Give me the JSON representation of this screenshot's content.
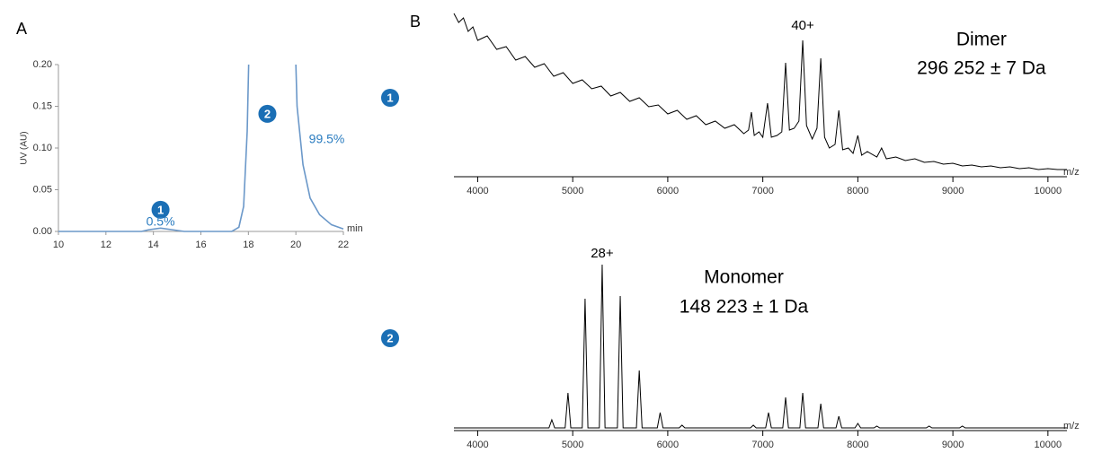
{
  "panels": [
    "A",
    "B"
  ],
  "markers": [
    "1",
    "2"
  ],
  "chart_data": [
    {
      "type": "line",
      "xlabel": "min",
      "ylabel": "UV (AU)",
      "xlim": [
        10,
        22
      ],
      "xticks": [
        10,
        12,
        14,
        16,
        18,
        20,
        22
      ],
      "ylim": [
        0,
        0.2
      ],
      "yticks": [
        {
          "value": 0,
          "label": "0.00"
        },
        {
          "value": 0.05,
          "label": "0.05"
        },
        {
          "value": 0.1,
          "label": "0.10"
        },
        {
          "value": 0.15,
          "label": "0.15"
        },
        {
          "value": 0.2,
          "label": "0.20"
        }
      ],
      "series": [
        {
          "color": "#6b98c9",
          "x": [
            10,
            13.5,
            13.8,
            14.3,
            14.8,
            15.3,
            17.3,
            17.6,
            17.8,
            17.95,
            18.05,
            19.95,
            20.05,
            20.3,
            20.6,
            21,
            21.5,
            22
          ],
          "values": [
            0,
            0,
            0.002,
            0.004,
            0.002,
            0,
            0,
            0.005,
            0.03,
            0.12,
            0.25,
            0.25,
            0.15,
            0.08,
            0.04,
            0.02,
            0.008,
            0.003
          ]
        }
      ],
      "annotations": [
        {
          "text": "1",
          "x": 14.3,
          "y": 0.026,
          "badge": true
        },
        {
          "text": "0.5%",
          "x": 14.3,
          "y": 0.011
        },
        {
          "text": "2",
          "x": 18.8,
          "y": 0.141,
          "badge": true
        },
        {
          "text": "99.5%",
          "x": 21.3,
          "y": 0.11
        }
      ]
    },
    {
      "type": "spectrum",
      "xlabel": "m/z",
      "color": "#000000",
      "xlim": [
        3750,
        10200
      ],
      "xticks": [
        4000,
        5000,
        6000,
        7000,
        8000,
        9000,
        10000
      ],
      "x": [
        3750,
        3800,
        3850,
        3900,
        3950,
        4000,
        4100,
        4200,
        4300,
        4400,
        4500,
        4600,
        4700,
        4800,
        4900,
        5000,
        5100,
        5200,
        5300,
        5400,
        5500,
        5600,
        5700,
        5800,
        5900,
        6000,
        6100,
        6200,
        6300,
        6400,
        6500,
        6600,
        6700,
        6800,
        6850,
        6880,
        6910,
        6960,
        7000,
        7050,
        7090,
        7150,
        7200,
        7240,
        7280,
        7330,
        7380,
        7420,
        7460,
        7520,
        7570,
        7610,
        7650,
        7700,
        7760,
        7800,
        7840,
        7900,
        7950,
        8000,
        8040,
        8100,
        8200,
        8250,
        8300,
        8400,
        8500,
        8600,
        8700,
        8800,
        8900,
        9000,
        9100,
        9200,
        9300,
        9400,
        9500,
        9600,
        9700,
        9800,
        9900,
        10000,
        10100,
        10200
      ],
      "values": [
        180,
        170,
        175,
        160,
        165,
        150,
        155,
        140,
        143,
        128,
        132,
        120,
        124,
        110,
        114,
        102,
        106,
        96,
        99,
        88,
        92,
        82,
        86,
        76,
        78,
        68,
        72,
        62,
        66,
        56,
        60,
        52,
        56,
        46,
        50,
        70,
        44,
        48,
        42,
        80,
        42,
        44,
        48,
        125,
        50,
        52,
        60,
        150,
        55,
        40,
        52,
        130,
        42,
        30,
        34,
        72,
        28,
        30,
        24,
        44,
        22,
        26,
        20,
        30,
        18,
        20,
        16,
        18,
        14,
        15,
        12,
        13,
        10,
        11,
        9,
        10,
        8,
        9,
        7,
        8,
        6,
        7,
        6,
        6
      ],
      "annotations": [
        {
          "text": "40+",
          "x": 7420,
          "y": 166
        },
        {
          "text": "Dimer",
          "x": 9300,
          "y": 150,
          "big": true
        },
        {
          "text": "296 252 ± 7 Da",
          "x": 9300,
          "y": 118,
          "big": true
        }
      ]
    },
    {
      "type": "spectrum",
      "xlabel": "m/z",
      "color": "#000000",
      "xlim": [
        3750,
        10200
      ],
      "xticks": [
        4000,
        5000,
        6000,
        7000,
        8000,
        9000,
        10000
      ],
      "x": [
        3750,
        4700,
        4750,
        4780,
        4810,
        4920,
        4950,
        4980,
        5100,
        5130,
        5160,
        5280,
        5310,
        5340,
        5470,
        5500,
        5530,
        5670,
        5700,
        5730,
        5890,
        5920,
        5950,
        6120,
        6150,
        6180,
        6870,
        6900,
        6930,
        7030,
        7060,
        7090,
        7210,
        7240,
        7270,
        7390,
        7420,
        7450,
        7580,
        7610,
        7640,
        7770,
        7800,
        7830,
        7970,
        8000,
        8030,
        8170,
        8200,
        8230,
        8720,
        8750,
        8780,
        9070,
        9100,
        9130,
        10200
      ],
      "values": [
        1,
        1,
        1,
        10,
        1,
        1,
        40,
        1,
        1,
        145,
        1,
        1,
        183,
        1,
        1,
        148,
        1,
        1,
        65,
        1,
        1,
        18,
        1,
        1,
        4,
        1,
        1,
        4,
        1,
        1,
        18,
        1,
        1,
        35,
        1,
        1,
        40,
        1,
        1,
        28,
        1,
        1,
        14,
        1,
        1,
        6,
        1,
        1,
        3,
        1,
        1,
        3,
        1,
        1,
        3,
        1,
        1
      ],
      "annotations": [
        {
          "text": "28+",
          "x": 5310,
          "y": 195
        },
        {
          "text": "Monomer",
          "x": 6800,
          "y": 168,
          "big": true
        },
        {
          "text": "148 223 ± 1 Da",
          "x": 6800,
          "y": 135,
          "big": true
        }
      ]
    }
  ]
}
